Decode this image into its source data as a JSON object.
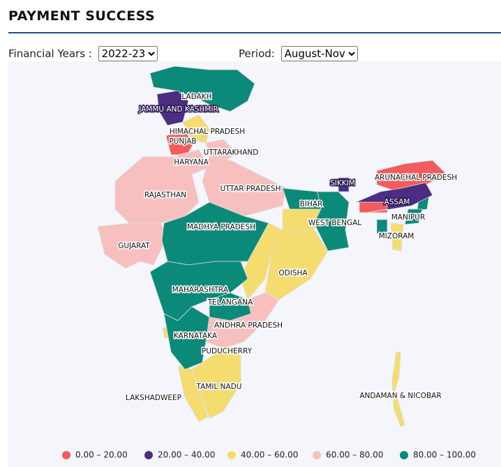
{
  "header": {
    "title": "PAYMENT SUCCESS"
  },
  "filters": [
    {
      "label": "Financial Years :",
      "value": "2022-23"
    },
    {
      "label": "Period:",
      "value": "August-Nov"
    }
  ],
  "regions": [
    {
      "label": "LADAKH",
      "color": "#0b8a7a"
    },
    {
      "label": "JAMMU AND KASHMIR",
      "color": "#4b2d83"
    },
    {
      "label": "HIMACHAL PRADESH",
      "color": "#f5dc6e"
    },
    {
      "label": "PUNJAB",
      "color": "#f25c5c"
    },
    {
      "label": "UTTARAKHAND",
      "color": "#f8bfbf"
    },
    {
      "label": "HARYANA",
      "color": "#f8bfbf"
    },
    {
      "label": "RAJASTHAN",
      "color": "#f8bfbf"
    },
    {
      "label": "UTTAR PRADESH",
      "color": "#f8bfbf"
    },
    {
      "label": "SIKKIM",
      "color": "#4b2d83"
    },
    {
      "label": "ARUNACHAL PRADESH",
      "color": "#f25c5c"
    },
    {
      "label": "ASSAM",
      "color": "#4b2d83"
    },
    {
      "label": "BIHAR",
      "color": "#0b8a7a"
    },
    {
      "label": "WEST BENGAL",
      "color": "#0b8a7a"
    },
    {
      "label": "MANIPUR",
      "color": "#0b8a7a"
    },
    {
      "label": "MIZORAM",
      "color": "#f5dc6e"
    },
    {
      "label": "GUJARAT",
      "color": "#f8bfbf"
    },
    {
      "label": "MADHYA PRADESH",
      "color": "#0b8a7a"
    },
    {
      "label": "ODISHA",
      "color": "#f5dc6e"
    },
    {
      "label": "MAHARASHTRA",
      "color": "#0b8a7a"
    },
    {
      "label": "TELANGANA",
      "color": "#0b8a7a"
    },
    {
      "label": "ANDHRA PRADESH",
      "color": "#f8bfbf"
    },
    {
      "label": "KARNATAKA",
      "color": "#0b8a7a"
    },
    {
      "label": "PUDUCHERRY",
      "color": "#f8bfbf"
    },
    {
      "label": "TAMIL NADU",
      "color": "#f5dc6e"
    },
    {
      "label": "LAKSHADWEEP"
    },
    {
      "label": "ANDAMAN & NICOBAR",
      "color": "#f5dc6e"
    }
  ],
  "legend": [
    {
      "label": "0.00 – 20.00",
      "color": "#f25c5c"
    },
    {
      "label": "20.00 – 40.00",
      "color": "#4b2d83"
    },
    {
      "label": "40.00 – 60.00",
      "color": "#f5dc6e"
    },
    {
      "label": "60.00 – 80.00",
      "color": "#f8bfbf"
    },
    {
      "label": "80.00 – 100.00",
      "color": "#0b8a7a"
    }
  ]
}
